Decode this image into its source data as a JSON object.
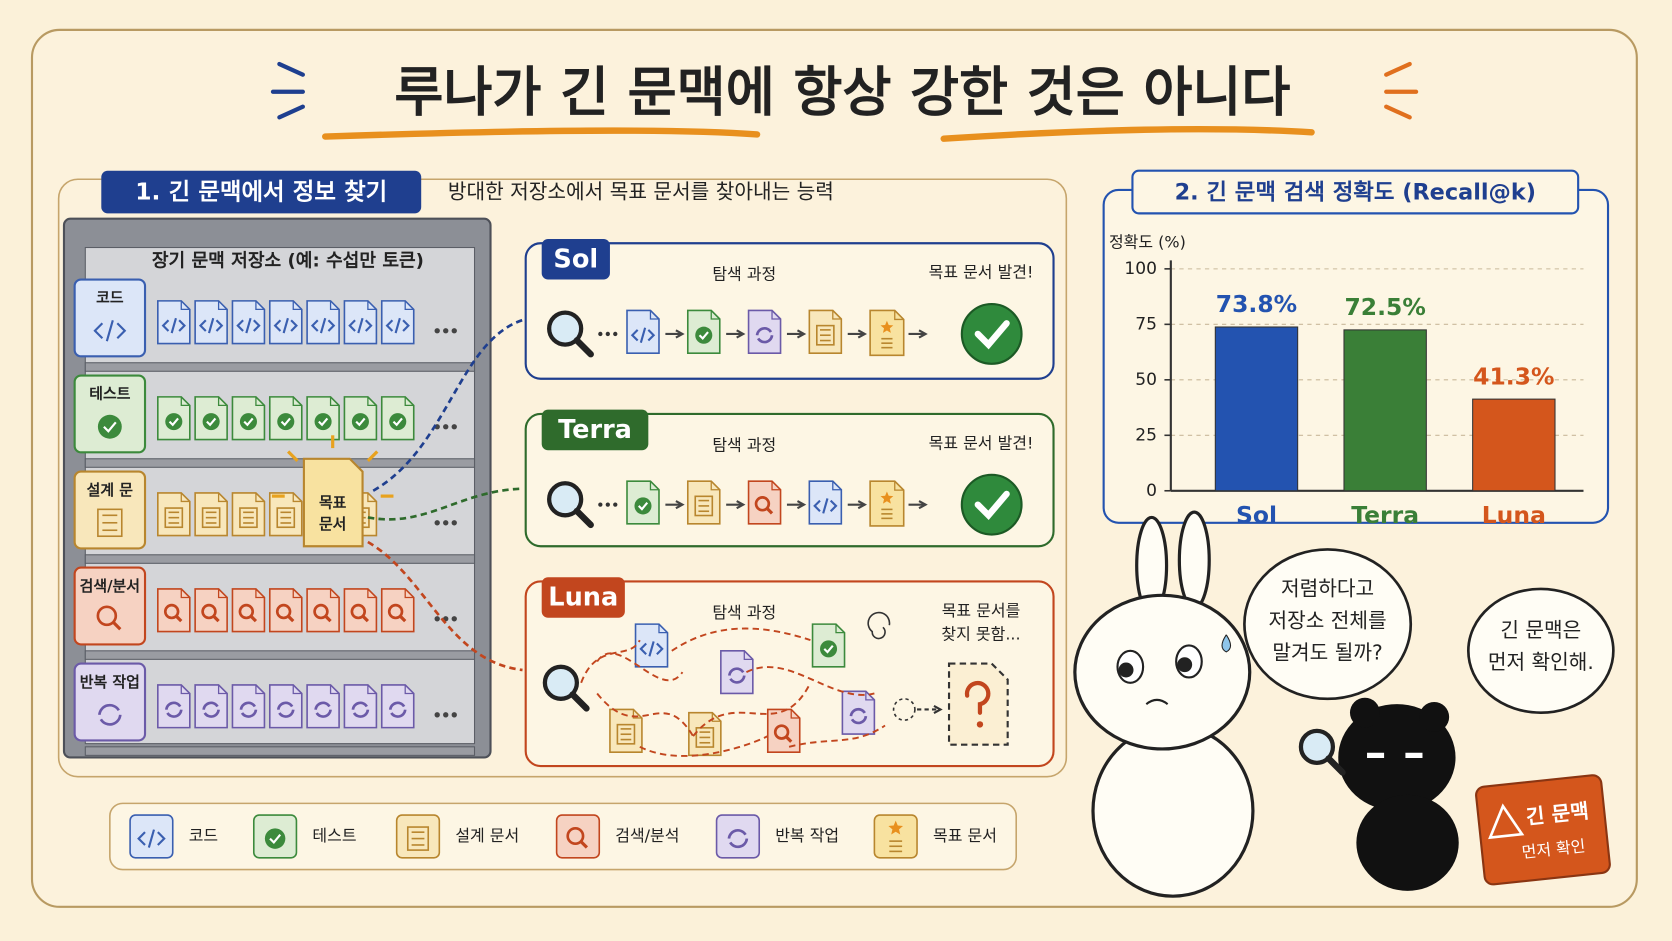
{
  "title": "루나가 긴 문맥에 항상 강한 것은 아니다",
  "section1": {
    "label": "1. 긴 문맥에서 정보 찾기",
    "subtitle": "방대한 저장소에서 목표 문서를 찾아내는 능력",
    "shelf_title": "장기 문맥 저장소 (예: 수섭만 토큰)",
    "shelf_rows": [
      "코드",
      "테스트",
      "설계 문",
      "검색/분서",
      "반복 작업"
    ],
    "target_doc": [
      "목표",
      "문서"
    ],
    "lanes": [
      {
        "name": "Sol",
        "process": "탐색 과정",
        "result": [
          "목표 문서 발견!"
        ]
      },
      {
        "name": "Terra",
        "process": "탐색 과정",
        "result": [
          "목표 문서 발견!"
        ]
      },
      {
        "name": "Luna",
        "process": "탐색 과정",
        "result": [
          "목표 문서를",
          "찾지 못함..."
        ]
      }
    ]
  },
  "legend": [
    "코드",
    "테스트",
    "설계 문서",
    "검색/분석",
    "반복 작업",
    "목표 문서"
  ],
  "chart_data": {
    "type": "bar",
    "title": "2. 긴 문맥 검색 정확도 (Recall@k)",
    "y_label": "정확도 (%)",
    "categories": [
      "Sol",
      "Terra",
      "Luna"
    ],
    "values": [
      73.8,
      72.5,
      41.3
    ],
    "value_labels": [
      "73.8%",
      "72.5%",
      "41.3%"
    ],
    "colors": [
      "#2353b0",
      "#3a7f37",
      "#d4561c"
    ],
    "ylim": [
      0,
      100
    ],
    "yticks": [
      0,
      25,
      50,
      75,
      100
    ],
    "grid": true
  },
  "bubbles": [
    [
      "저렴하다고",
      "저장소 전체를",
      "말겨도 될까?"
    ],
    [
      "긴 문맥은",
      "먼저 확인해."
    ]
  ],
  "warning_sign": [
    "긴 문맥",
    "먼저 확인"
  ]
}
